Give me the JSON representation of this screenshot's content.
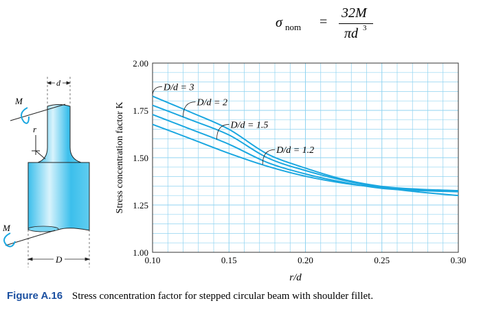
{
  "formula": {
    "lhs_symbol": "σ",
    "lhs_subscript": "nom",
    "equals": "=",
    "numerator": "32M",
    "denominator": "πd",
    "denominator_exponent": "3"
  },
  "diagram": {
    "moment_label_top": "M",
    "moment_label_bottom": "M",
    "radius_label": "r",
    "small_diameter_label": "d",
    "large_diameter_label": "D",
    "shaft_color": "#3cbfec"
  },
  "caption": {
    "figure_label": "Figure A.16",
    "text": "Stress concentration factor for stepped circular beam with shoulder fillet.",
    "label_color": "#1a4fa0"
  },
  "chart_data": {
    "type": "line",
    "xlabel": "r/d",
    "ylabel": "Stress concentration factor K",
    "xlim": [
      0.1,
      0.3
    ],
    "ylim": [
      1.0,
      2.0
    ],
    "xticks": [
      "0.10",
      "0.15",
      "0.20",
      "0.25",
      "0.30"
    ],
    "yticks": [
      "1.00",
      "1.25",
      "1.50",
      "1.75",
      "2.00"
    ],
    "grid": true,
    "line_color": "#1aa7e0",
    "grid_color": "#8fd3f0",
    "x": [
      0.1,
      0.125,
      0.15,
      0.175,
      0.2,
      0.225,
      0.25,
      0.275,
      0.3
    ],
    "series": [
      {
        "name": "D/d = 3",
        "values": [
          1.825,
          1.74,
          1.65,
          1.52,
          1.445,
          1.385,
          1.348,
          1.333,
          1.326
        ]
      },
      {
        "name": "D/d = 2",
        "values": [
          1.777,
          1.7,
          1.62,
          1.5,
          1.432,
          1.38,
          1.344,
          1.33,
          1.324
        ]
      },
      {
        "name": "D/d = 1.5",
        "values": [
          1.728,
          1.65,
          1.571,
          1.475,
          1.414,
          1.37,
          1.338,
          1.326,
          1.32
        ]
      },
      {
        "name": "D/d = 1.2",
        "values": [
          1.676,
          1.6,
          1.523,
          1.455,
          1.402,
          1.365,
          1.341,
          1.318,
          1.3
        ]
      }
    ]
  }
}
